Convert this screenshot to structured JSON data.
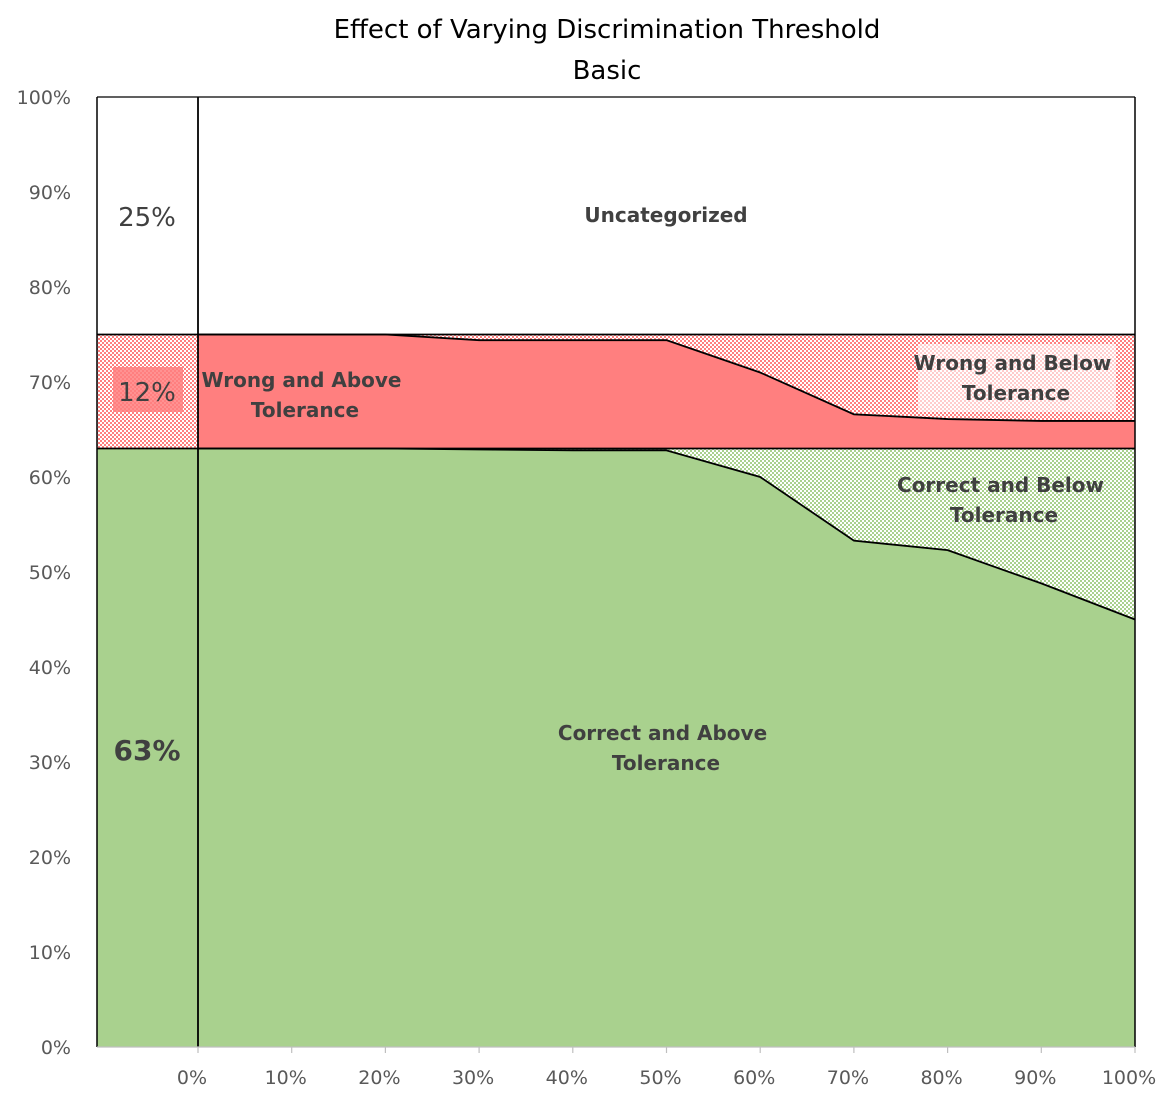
{
  "chart_data": {
    "type": "area",
    "title": "Effect of Varying Discrimination Threshold",
    "subtitle": "Basic",
    "xlabel": "",
    "ylabel": "",
    "x_ticks": [
      "0%",
      "10%",
      "20%",
      "30%",
      "40%",
      "50%",
      "60%",
      "70%",
      "80%",
      "90%",
      "100%"
    ],
    "y_ticks": [
      "0%",
      "10%",
      "20%",
      "30%",
      "40%",
      "50%",
      "60%",
      "70%",
      "80%",
      "90%",
      "100%"
    ],
    "ylim": [
      0,
      100
    ],
    "x": [
      0,
      10,
      20,
      30,
      40,
      50,
      60,
      70,
      80,
      90,
      100
    ],
    "baseline": {
      "correct": 63,
      "wrong": 12,
      "uncategorized": 25,
      "labels": {
        "correct": "63%",
        "wrong": "12%",
        "uncategorized": "25%"
      }
    },
    "series": [
      {
        "name": "Correct and Above Tolerance",
        "values": [
          63,
          63,
          63,
          62.9,
          62.8,
          62.8,
          60,
          53.3,
          52.3,
          48.8,
          45
        ],
        "color": "#a9d18e"
      },
      {
        "name": "Correct and Below Tolerance",
        "values": [
          0,
          0,
          0,
          0.1,
          0.2,
          0.2,
          3,
          9.7,
          10.7,
          14.2,
          18
        ],
        "color": "#a9d18e",
        "pattern": "checker"
      },
      {
        "name": "Wrong and Above Tolerance",
        "values": [
          12,
          12,
          12,
          11.4,
          11.4,
          11.4,
          8,
          3.6,
          3.1,
          2.9,
          2.9
        ],
        "color": "#ff7f7f"
      },
      {
        "name": "Wrong and Below Tolerance",
        "values": [
          0,
          0,
          0,
          0.6,
          0.6,
          0.6,
          4,
          8.4,
          8.9,
          9.1,
          9.1
        ],
        "color": "#ff7f7f",
        "pattern": "checker"
      },
      {
        "name": "Uncategorized",
        "values": [
          25,
          25,
          25,
          25,
          25,
          25,
          25,
          25,
          25,
          25,
          25
        ],
        "color": "#ffffff"
      }
    ],
    "region_labels": {
      "uncategorized": "Uncategorized",
      "wrong_above": [
        "Wrong and Above",
        "Tolerance"
      ],
      "wrong_below": [
        "Wrong and Below",
        "Tolerance"
      ],
      "correct_below": [
        "Correct and Below",
        "Tolerance"
      ],
      "correct_above": [
        "Correct and Above",
        "Tolerance"
      ]
    },
    "grid": false,
    "legend": "none"
  }
}
